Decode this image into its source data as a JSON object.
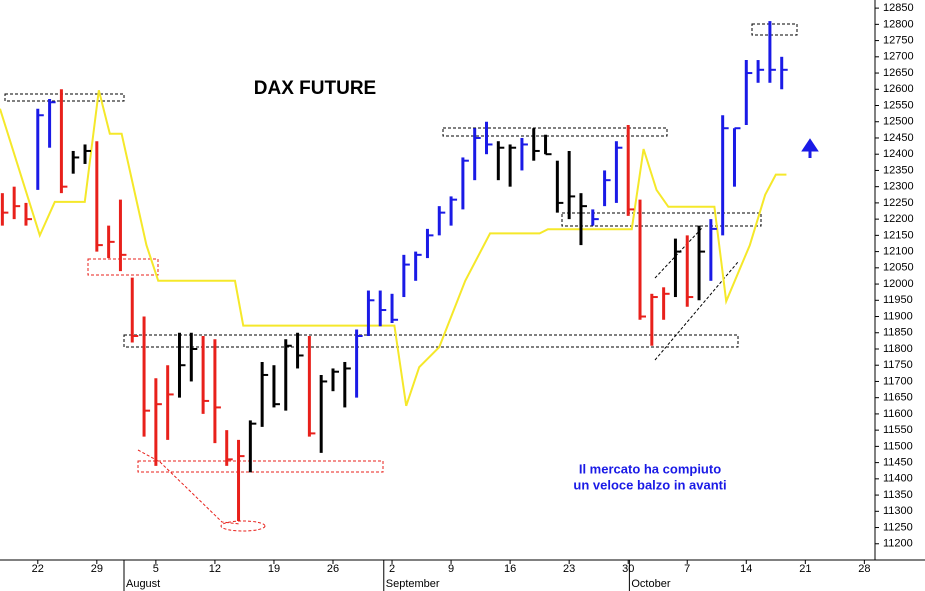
{
  "chart_data": {
    "type": "ohlc",
    "title": "DAX FUTURE",
    "annotation": [
      "Il mercato ha compiuto",
      "un veloce balzo in avanti"
    ],
    "xlim": [
      -3.2,
      70.9
    ],
    "xticks": [
      {
        "value": 0,
        "label": "22"
      },
      {
        "value": 5,
        "label": "29"
      },
      {
        "value": 10,
        "label": "5"
      },
      {
        "value": 15,
        "label": "12"
      },
      {
        "value": 20,
        "label": "19"
      },
      {
        "value": 25,
        "label": "26"
      },
      {
        "value": 30,
        "label": "2"
      },
      {
        "value": 35,
        "label": "9"
      },
      {
        "value": 40,
        "label": "16"
      },
      {
        "value": 45,
        "label": "23"
      },
      {
        "value": 50,
        "label": "30"
      },
      {
        "value": 55,
        "label": "7"
      },
      {
        "value": 60,
        "label": "14"
      },
      {
        "value": 65,
        "label": "21"
      },
      {
        "value": 70,
        "label": "28"
      }
    ],
    "months": [
      {
        "value": 7.3,
        "label": "August"
      },
      {
        "value": 29.3,
        "label": "September"
      },
      {
        "value": 50.1,
        "label": "October"
      }
    ],
    "ylim": [
      11150,
      12875
    ],
    "yticks": [
      11200,
      11250,
      11300,
      11350,
      11400,
      11450,
      11500,
      11550,
      11600,
      11650,
      11700,
      11750,
      11800,
      11850,
      11900,
      11950,
      12000,
      12050,
      12100,
      12150,
      12200,
      12250,
      12300,
      12350,
      12400,
      12450,
      12500,
      12550,
      12600,
      12650,
      12700,
      12750,
      12800,
      12850
    ],
    "series": [
      {
        "color": "#e8201b",
        "x": [
          -3,
          -2,
          -1,
          2,
          5,
          6,
          7,
          8,
          9,
          10,
          11,
          14,
          15,
          16,
          17,
          23,
          50,
          51,
          52,
          53,
          55
        ],
        "high": [
          12280,
          12300,
          12250,
          12600,
          12440,
          12180,
          12260,
          12020,
          11900,
          11710,
          11750,
          11840,
          11830,
          11550,
          11520,
          11840,
          12490,
          12260,
          11970,
          11990,
          12150
        ],
        "low": [
          12180,
          12200,
          12180,
          12280,
          12100,
          12080,
          12040,
          11820,
          11530,
          11440,
          11520,
          11600,
          11510,
          11440,
          11270,
          11530,
          12210,
          11890,
          11810,
          11890,
          11930
        ],
        "close": [
          12220,
          12240,
          12200,
          12300,
          12120,
          12130,
          12090,
          11840,
          11610,
          11630,
          11660,
          11640,
          11620,
          11460,
          11470,
          11540,
          12230,
          11900,
          11960,
          11970,
          11960
        ]
      },
      {
        "color": "#000000",
        "x": [
          3,
          4,
          12,
          13,
          18,
          19,
          20,
          21,
          22,
          24,
          25,
          26,
          39,
          40,
          42,
          43,
          44,
          45,
          46,
          54,
          56
        ],
        "high": [
          12410,
          12430,
          11850,
          11850,
          11580,
          11760,
          11750,
          11830,
          11850,
          11720,
          11740,
          11760,
          12440,
          12430,
          12480,
          12460,
          12380,
          12410,
          12280,
          12140,
          12180
        ],
        "low": [
          12340,
          12370,
          11650,
          11700,
          11420,
          11560,
          11620,
          11610,
          11740,
          11480,
          11670,
          11620,
          12320,
          12300,
          12380,
          12400,
          12220,
          12200,
          12120,
          11960,
          11950
        ],
        "close": [
          12390,
          12410,
          11750,
          11800,
          11570,
          11720,
          11630,
          11810,
          11780,
          11700,
          11730,
          11740,
          12420,
          12420,
          12410,
          12400,
          12250,
          12270,
          12240,
          12100,
          12100
        ]
      },
      {
        "color": "#1a1ae6",
        "x": [
          0,
          1,
          27,
          28,
          29,
          30,
          31,
          32,
          33,
          34,
          35,
          36,
          37,
          38,
          41,
          47,
          48,
          49,
          57,
          58,
          59,
          60,
          61,
          62,
          63
        ],
        "high": [
          12540,
          12570,
          11860,
          11980,
          11980,
          11970,
          12090,
          12100,
          12170,
          12240,
          12270,
          12390,
          12480,
          12500,
          12450,
          12230,
          12350,
          12440,
          12200,
          12520,
          12480,
          12690,
          12690,
          12810,
          12700
        ],
        "low": [
          12290,
          12420,
          11650,
          11840,
          11870,
          11880,
          11960,
          12010,
          12080,
          12150,
          12180,
          12230,
          12320,
          12400,
          12350,
          12180,
          12240,
          12250,
          12010,
          12150,
          12300,
          12490,
          12620,
          12620,
          12600
        ],
        "close": [
          12520,
          12560,
          11840,
          11950,
          11920,
          11890,
          12060,
          12090,
          12150,
          12220,
          12260,
          12380,
          12450,
          12430,
          12430,
          12200,
          12320,
          12420,
          12170,
          12480,
          12480,
          12650,
          12660,
          12660,
          12660
        ]
      }
    ],
    "line": {
      "color": "#f5e82a",
      "x": [
        -3.2,
        0.17,
        1.44,
        3.98,
        5.17,
        6.1,
        7.1,
        9.2,
        10.2,
        16.7,
        17.4,
        30.2,
        31.2,
        32.3,
        34.0,
        36.2,
        38.3,
        42.5,
        43.2,
        50.3,
        51.3,
        52.4,
        53.4,
        57.3,
        58.3,
        60.3,
        61.6,
        62.5,
        63.4
      ],
      "values": [
        12540,
        12150,
        12253,
        12253,
        12597,
        12463,
        12463,
        12120,
        12010,
        12010,
        11872,
        11872,
        11625,
        11744,
        11806,
        12010,
        12156,
        12156,
        12169,
        12169,
        12416,
        12290,
        12238,
        12238,
        11947,
        12120,
        12275,
        12337,
        12337
      ]
    }
  }
}
